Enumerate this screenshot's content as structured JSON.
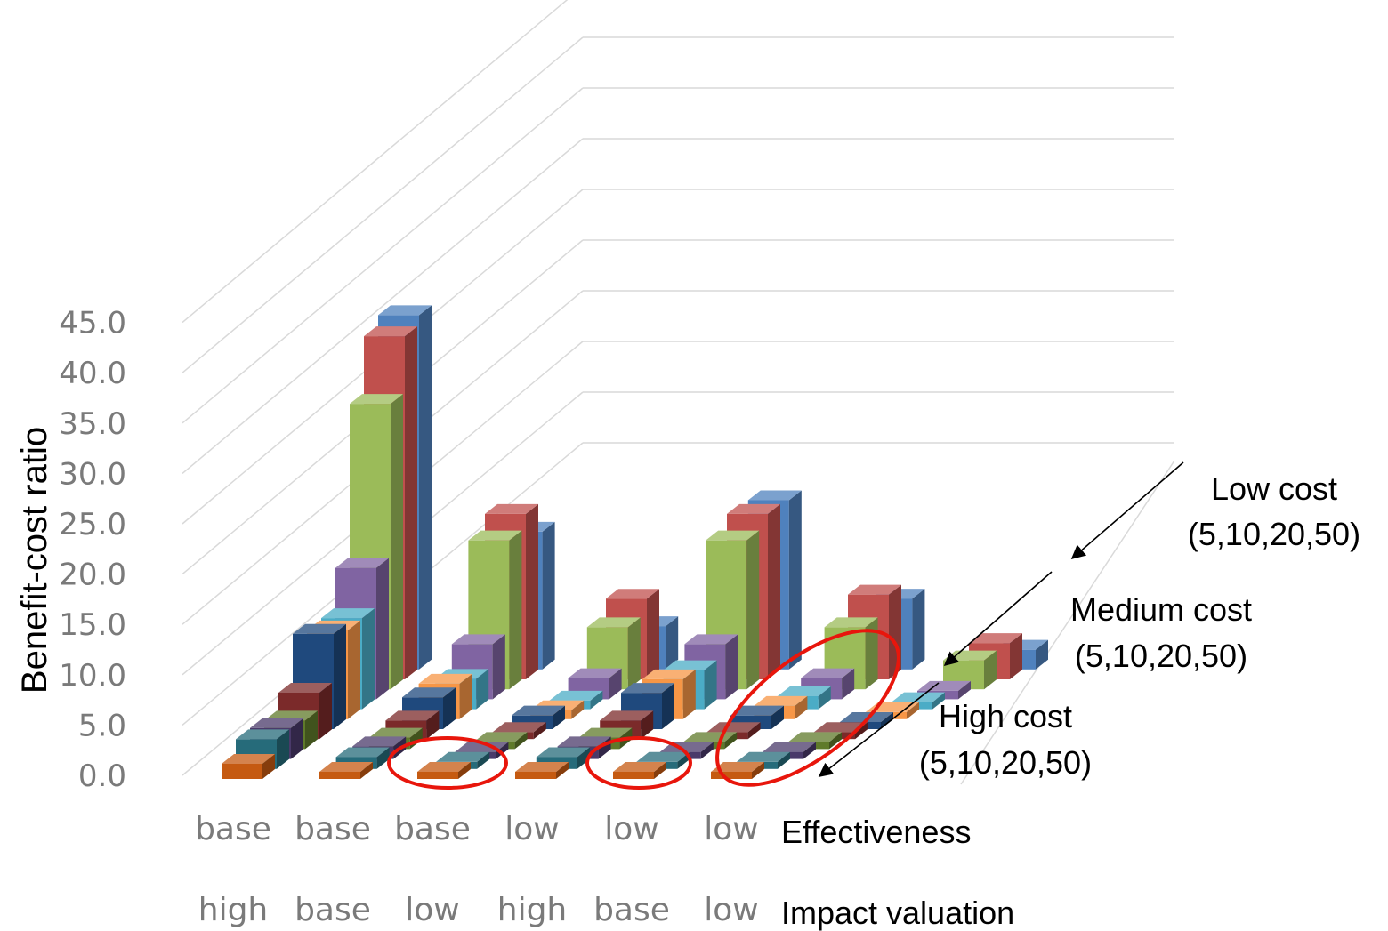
{
  "chart_data": {
    "type": "bar",
    "subtype": "3d-column",
    "ylabel": "Benefit-cost ratio",
    "yticks": [
      "0.0",
      "5.0",
      "10.0",
      "15.0",
      "20.0",
      "25.0",
      "30.0",
      "35.0",
      "40.0",
      "45.0"
    ],
    "ylim": [
      0,
      45
    ],
    "grid": true,
    "category_rows": [
      {
        "label": "Effectiveness",
        "values": [
          "base",
          "base",
          "base",
          "low",
          "low",
          "low"
        ]
      },
      {
        "label": "Impact valuation",
        "values": [
          "high",
          "base",
          "low",
          "high",
          "base",
          "low"
        ]
      }
    ],
    "series_groups": [
      {
        "label": "Low cost",
        "sublabel": "(5,10,20,50)"
      },
      {
        "label": "Medium cost",
        "sublabel": "(5,10,20,50)"
      },
      {
        "label": "High cost",
        "sublabel": "(5,10,20,50)"
      }
    ],
    "series": [
      {
        "cost": "Low cost",
        "discount": "5",
        "color": "#4f81bd",
        "values": [
          45.0,
          17.5,
          5.5,
          21.5,
          9.0,
          2.5
        ]
      },
      {
        "cost": "Low cost",
        "discount": "10",
        "color": "#c0504d",
        "values": [
          42.5,
          20.5,
          10.0,
          20.5,
          10.5,
          4.5
        ]
      },
      {
        "cost": "Low cost",
        "discount": "20",
        "color": "#9bbb59",
        "values": [
          34.5,
          18.0,
          7.5,
          18.0,
          7.5,
          3.5
        ]
      },
      {
        "cost": "Low cost",
        "discount": "50",
        "color": "#8064a2",
        "values": [
          15.5,
          6.5,
          2.5,
          6.5,
          2.5,
          1.0
        ]
      },
      {
        "cost": "Medium cost",
        "discount": "5",
        "color": "#4bacc6",
        "values": [
          10.5,
          3.5,
          1.0,
          4.5,
          1.5,
          0.5
        ]
      },
      {
        "cost": "Medium cost",
        "discount": "10",
        "color": "#f79646",
        "values": [
          10.0,
          4.0,
          1.0,
          4.5,
          1.5,
          0.5
        ]
      },
      {
        "cost": "Medium cost",
        "discount": "20",
        "color": "#1f497d",
        "values": [
          10.5,
          3.5,
          1.5,
          4.0,
          1.5,
          0.5
        ]
      },
      {
        "cost": "Medium cost",
        "discount": "50",
        "color": "#7b2a2a",
        "values": [
          5.0,
          2.0,
          0.5,
          2.0,
          0.5,
          0.3
        ]
      },
      {
        "cost": "High cost",
        "discount": "5",
        "color": "#5f7a2a",
        "values": [
          3.0,
          1.2,
          0.4,
          1.2,
          0.4,
          0.2
        ]
      },
      {
        "cost": "High cost",
        "discount": "10",
        "color": "#4a3a6a",
        "values": [
          3.2,
          1.3,
          0.4,
          1.3,
          0.4,
          0.2
        ]
      },
      {
        "cost": "High cost",
        "discount": "20",
        "color": "#266b7a",
        "values": [
          3.0,
          1.2,
          0.3,
          1.2,
          0.3,
          0.2
        ]
      },
      {
        "cost": "High cost",
        "discount": "50",
        "color": "#c55a11",
        "values": [
          1.5,
          0.5,
          0.2,
          0.5,
          0.2,
          0.1
        ]
      }
    ]
  }
}
